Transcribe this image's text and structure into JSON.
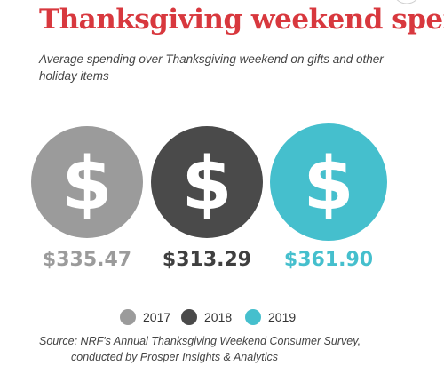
{
  "title": "Thanksgiving weekend spending",
  "subtitle": "Average spending over Thanksgiving weekend on gifts and other holiday items",
  "source": {
    "line1": "Source: NRF's Annual Thanksgiving Weekend Consumer Survey,",
    "line2": "conducted by Prosper Insights & Analytics"
  },
  "colors": {
    "title": "#d8383e",
    "y2017": "#9b9b9b",
    "y2018": "#4a4a4a",
    "y2019": "#45bfcd",
    "symbol": "#ffffff"
  },
  "icons": {
    "circle_symbol": "dollar-sign-icon",
    "corner": "share-icon"
  },
  "chart_data": {
    "type": "bar",
    "categories": [
      "2017",
      "2018",
      "2019"
    ],
    "values": [
      335.47,
      313.29,
      361.9
    ],
    "value_labels": [
      "$335.47",
      "$313.29",
      "$361.90"
    ],
    "symbol": "$",
    "legend": {
      "entries": [
        "2017",
        "2018",
        "2019"
      ],
      "placement": "bottom"
    },
    "grid": false
  }
}
